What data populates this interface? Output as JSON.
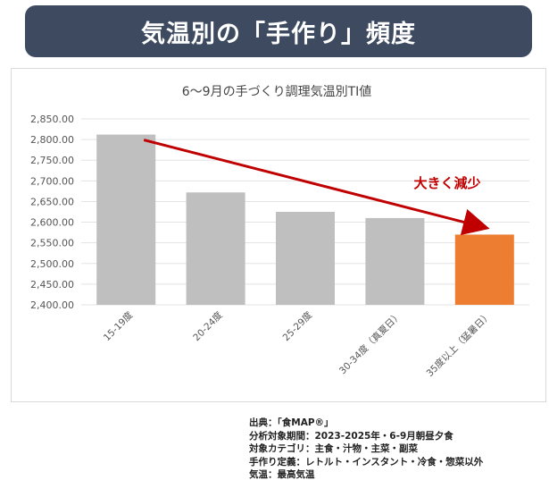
{
  "banner": {
    "title": "気温別の「手作り」頻度"
  },
  "chart_data": {
    "type": "bar",
    "title": "6～9月の手づくり調理気温別TI値",
    "categories": [
      "15-19度",
      "20-24度",
      "25-29度",
      "30-34度（真夏日）",
      "35度以上（猛暑日）"
    ],
    "values": [
      2812,
      2672,
      2625,
      2610,
      2570
    ],
    "ylim": [
      2400,
      2850
    ],
    "yticks": [
      2400,
      2450,
      2500,
      2550,
      2600,
      2650,
      2700,
      2750,
      2800,
      2850
    ],
    "ytick_labels": [
      "2,400.00",
      "2,450.00",
      "2,500.00",
      "2,550.00",
      "2,600.00",
      "2,650.00",
      "2,700.00",
      "2,750.00",
      "2,800.00",
      "2,850.00"
    ],
    "grid": true,
    "bar_colors": [
      "#bfbfbf",
      "#bfbfbf",
      "#bfbfbf",
      "#bfbfbf",
      "#ed7d31"
    ],
    "arrow_color": "#c00000",
    "annotation": "大きく減少"
  },
  "source_notes": [
    "出典：「食MAP®」",
    "分析対象期間：2023-2025年・6-9月朝昼夕食",
    "対象カテゴリ：主食・汁物・主菜・副菜",
    "手作り定義：レトルト・インスタント・冷食・惣菜以外",
    "気温：最高気温"
  ]
}
